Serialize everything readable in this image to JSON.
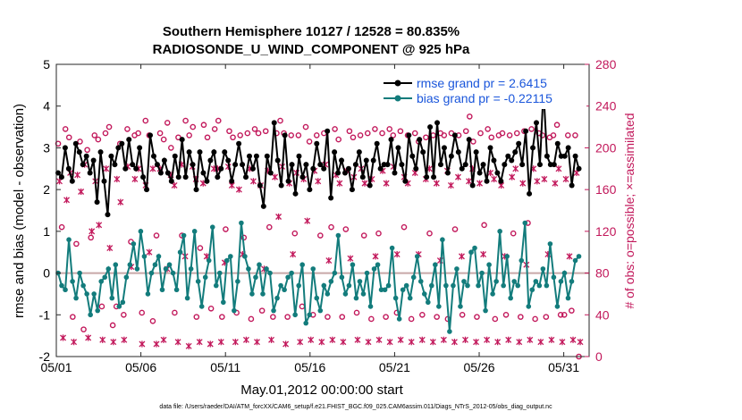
{
  "chart_data": {
    "type": "line",
    "title": "Southern Hemisphere 10127 / 12528 = 80.835%",
    "subtitle": "RADIOSONDE_U_WIND_COMPONENT @ 925 hPa",
    "xlabel": "May.01,2012 00:00:00 start",
    "ylabel": "rmse and bias (model - observation)",
    "ylabel_right": "# of obs: o=possible; ×=assimilated",
    "footnote": "data file: /Users/raeder/DAI/ATM_forcXX/CAM6_setup/f.e21.FHIST_BGC.f09_025.CAM6assim.011/Diags_NTrS_2012-05/obs_diag_output.nc",
    "xlim": [
      0,
      31.5
    ],
    "ylim": [
      -2,
      5
    ],
    "ylim_right": [
      0,
      280
    ],
    "xticks": [
      0,
      5,
      10,
      15,
      20,
      25,
      30
    ],
    "xtick_labels": [
      "05/01",
      "05/06",
      "05/11",
      "05/16",
      "05/21",
      "05/26",
      "05/31"
    ],
    "yticks": [
      -2,
      -1,
      0,
      1,
      2,
      3,
      4,
      5
    ],
    "yticks_right": [
      0,
      40,
      80,
      120,
      160,
      200,
      240,
      280
    ],
    "legend": {
      "location": "top-right",
      "entries": [
        "rmse grand pr = 2.6415",
        "bias grand pr = -0.22115"
      ]
    },
    "colors": {
      "rmse": "#000000",
      "bias": "#137c7c",
      "counts": "#c2185b",
      "zero_line": "#c8a8a8",
      "legend_text": "#1a56db"
    },
    "series": [
      {
        "name": "rmse",
        "axis": "left",
        "values": [
          2.4,
          2.3,
          3.0,
          2.5,
          2.2,
          3.1,
          2.9,
          2.6,
          2.8,
          2.4,
          2.7,
          1.7,
          2.9,
          2.2,
          1.4,
          2.8,
          2.6,
          3.0,
          3.1,
          2.5,
          3.2,
          2.6,
          2.5,
          3.0,
          2.3,
          2.0,
          3.3,
          2.8,
          2.6,
          2.4,
          2.7,
          2.4,
          2.2,
          2.8,
          2.3,
          3.2,
          2.3,
          2.9,
          2.6,
          2.0,
          2.9,
          2.4,
          2.2,
          2.7,
          2.9,
          2.3,
          2.5,
          2.9,
          2.7,
          2.2,
          2.6,
          3.1,
          2.6,
          2.3,
          2.8,
          2.5,
          2.8,
          2.1,
          1.6,
          2.8,
          2.4,
          3.6,
          2.7,
          2.1,
          3.3,
          2.2,
          2.6,
          1.9,
          2.8,
          2.3,
          2.6,
          2.0,
          2.5,
          3.1,
          2.6,
          2.5,
          3.4,
          1.8,
          2.9,
          2.4,
          2.7,
          2.4,
          2.5,
          2.0,
          2.6,
          2.9,
          2.3,
          2.7,
          2.1,
          2.7,
          3.1,
          2.5,
          2.6,
          2.6,
          3.2,
          2.4,
          3.0,
          2.6,
          2.2,
          3.3,
          2.8,
          2.5,
          3.2,
          2.9,
          2.3,
          3.5,
          2.3,
          3.6,
          2.6,
          3.0,
          2.4,
          2.8,
          3.3,
          2.9,
          2.5,
          2.6,
          3.2,
          2.1,
          2.9,
          2.4,
          2.6,
          2.2,
          3.0,
          2.7,
          2.4,
          2.2,
          2.6,
          2.8,
          2.7,
          2.9,
          3.1,
          2.6,
          3.4,
          1.9,
          3.0,
          3.6,
          2.6,
          4.4,
          2.8,
          2.6,
          2.6,
          3.1,
          2.8,
          2.8,
          3.0,
          2.1,
          2.8,
          2.5
        ]
      },
      {
        "name": "bias",
        "axis": "left",
        "values": [
          0.0,
          -0.3,
          -0.4,
          0.8,
          -0.2,
          -0.6,
          0.0,
          -0.3,
          -0.5,
          -1.0,
          -0.5,
          -0.9,
          -0.2,
          -0.1,
          0.1,
          -0.6,
          0.2,
          -0.8,
          -0.7,
          -0.1,
          0.2,
          0.7,
          0.1,
          1.0,
          0.4,
          -0.5,
          0.0,
          0.2,
          0.4,
          -0.4,
          0.1,
          0.2,
          0.0,
          -0.4,
          0.5,
          0.9,
          -0.6,
          0.1,
          1.0,
          -0.2,
          -0.8,
          -0.1,
          0.3,
          1.1,
          -0.3,
          0.0,
          -0.7,
          0.3,
          0.4,
          -0.9,
          -0.2,
          1.2,
          0.4,
          0.1,
          -0.5,
          -0.1,
          0.2,
          -0.5,
          0.1,
          0.0,
          -0.9,
          -0.6,
          -0.3,
          -0.4,
          -0.1,
          0.0,
          -1.0,
          -0.3,
          0.2,
          -1.2,
          -1.0,
          0.1,
          -0.6,
          -0.9,
          -0.3,
          -0.5,
          -0.2,
          0.0,
          0.9,
          -0.1,
          -0.5,
          -0.3,
          0.2,
          -0.6,
          -0.2,
          -0.5,
          0.0,
          -0.8,
          0.1,
          0.2,
          -0.4,
          -0.4,
          -0.3,
          0.6,
          -0.6,
          -1.1,
          -0.4,
          -0.3,
          -0.6,
          -0.1,
          0.4,
          -0.2,
          -0.5,
          -0.7,
          -0.3,
          0.2,
          -0.8,
          0.8,
          -0.3,
          -1.4,
          -0.3,
          0.1,
          -0.8,
          -0.2,
          -0.3,
          0.5,
          0.6,
          -0.3,
          0.0,
          -0.9,
          0.2,
          -0.5,
          -0.2,
          1.0,
          -0.3,
          0.4,
          -0.6,
          -0.2,
          -0.3,
          0.3,
          1.2,
          -0.8,
          -0.4,
          -0.2,
          -0.3,
          0.1,
          -0.3,
          0.7,
          -0.1,
          -0.8,
          -0.2,
          0.0,
          -0.6,
          -0.2,
          0.3,
          0.4
        ]
      },
      {
        "name": "possible",
        "axis": "right",
        "marker": "o",
        "values": [
          204,
          124,
          218,
          210,
          38,
          108,
          206,
          26,
          198,
          114,
          212,
          208,
          48,
          214,
          220,
          30,
          48,
          204,
          40,
          218,
          110,
          212,
          214,
          42,
          226,
          212,
          34,
          116,
          214,
          208,
          224,
          200,
          42,
          210,
          116,
          226,
          212,
          220,
          38,
          104,
          222,
          210,
          46,
          218,
          226,
          38,
          122,
          216,
          210,
          42,
          212,
          114,
          214,
          36,
          218,
          214,
          44,
          216,
          124,
          38,
          214,
          226,
          214,
          38,
          212,
          118,
          212,
          48,
          220,
          206,
          40,
          212,
          116,
          214,
          38,
          124,
          218,
          208,
          38,
          122,
          216,
          210,
          42,
          212,
          116,
          214,
          36,
          218,
          118,
          214,
          38,
          218,
          212,
          42,
          216,
          124,
          212,
          36,
          214,
          206,
          40,
          210,
          118,
          212,
          38,
          214,
          212,
          36,
          214,
          122,
          212,
          40,
          216,
          230,
          206,
          38,
          214,
          126,
          218,
          210,
          36,
          212,
          214,
          40,
          212,
          118,
          214,
          38,
          216,
          128,
          218,
          36,
          214,
          212,
          38,
          210,
          212,
          222,
          40,
          40,
          212,
          44,
          212,
          0
        ]
      },
      {
        "name": "assimilated",
        "axis": "right",
        "marker": "x",
        "values": [
          168,
          18,
          150,
          176,
          14,
          174,
          158,
          184,
          18,
          120,
          168,
          126,
          16,
          180,
          104,
          14,
          170,
          148,
          16,
          182,
          86,
          170,
          180,
          12,
          164,
          100,
          180,
          12,
          180,
          16,
          84,
          174,
          164,
          14,
          184,
          96,
          10,
          182,
          170,
          14,
          166,
          96,
          12,
          180,
          180,
          14,
          90,
          182,
          164,
          14,
          160,
          98,
          16,
          180,
          168,
          14,
          164,
          84,
          178,
          16,
          172,
          134,
          182,
          12,
          166,
          98,
          176,
          14,
          170,
          130,
          16,
          178,
          168,
          14,
          184,
          92,
          16,
          174,
          166,
          14,
          178,
          94,
          172,
          16,
          180,
          166,
          14,
          170,
          96,
          16,
          178,
          166,
          14,
          182,
          98,
          16,
          172,
          166,
          14,
          176,
          98,
          16,
          170,
          180,
          14,
          166,
          92,
          16,
          178,
          164,
          14,
          172,
          96,
          16,
          168,
          180,
          14,
          166,
          98,
          16,
          176,
          170,
          14,
          164,
          96,
          16,
          172,
          180,
          14,
          166,
          88,
          16,
          180,
          168,
          14,
          170,
          98,
          16,
          166,
          180,
          14,
          170,
          96,
          16,
          176,
          14
        ]
      }
    ]
  }
}
